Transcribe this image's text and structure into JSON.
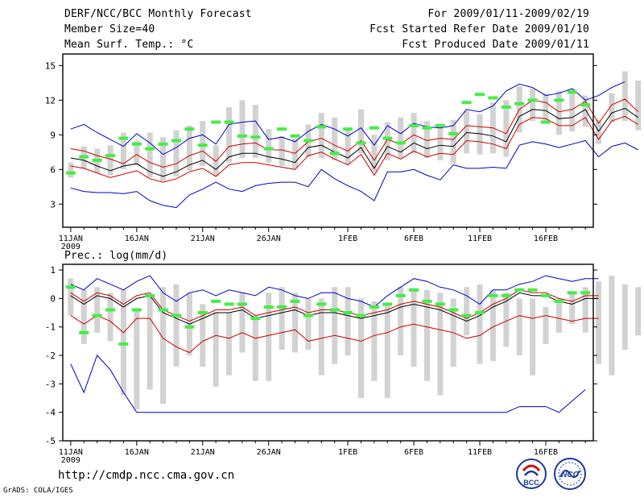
{
  "header": {
    "title": "DERF/NCC/BCC Monthly Forecast",
    "member_size": "Member Size=40",
    "variable": "Mean Surf. Temp.: °C",
    "forecast_range": "For 2009/01/11-2009/02/19",
    "fcst_started": "Fcst Started Refer Date 2009/01/10",
    "fcst_produced": "Fcst Produced Date 2009/01/11"
  },
  "footer": {
    "url": "http://cmdp.ncc.cma.gov.cn",
    "grads_credit": "GrADS: COLA/IGES",
    "logo_bcc": "BCC",
    "logo_ncc": "NCC"
  },
  "colors": {
    "ensemble_mean": "#000000",
    "spread_band": "#cc0000",
    "min_max": "#0000cc",
    "box": "#d2d2d2",
    "observed_marker": "#44ee44"
  },
  "chart_data": [
    {
      "type": "line",
      "id": "temp",
      "title": "Mean Surf. Temp.: °C",
      "x_tick_labels": [
        "11JAN",
        "16JAN",
        "21JAN",
        "26JAN",
        "1FEB",
        "6FEB",
        "11FEB",
        "16FEB"
      ],
      "x_tick_days": [
        1,
        6,
        11,
        16,
        22,
        27,
        32,
        37
      ],
      "x_sublabel": "2009",
      "xlim": [
        0.4,
        40.6
      ],
      "ylim": [
        1,
        16
      ],
      "yticks": [
        3,
        6,
        9,
        12,
        15
      ],
      "ytick_labels": [
        "3",
        "6",
        "9",
        "12",
        "15"
      ],
      "series": [
        {
          "name": "max",
          "color": "#0000cc",
          "values": [
            9.5,
            9.9,
            9.2,
            8.6,
            8.0,
            9.1,
            8.3,
            7.3,
            7.9,
            8.7,
            9.0,
            8.2,
            9.9,
            10.1,
            10.2,
            8.6,
            8.8,
            8.4,
            9.3,
            9.9,
            9.5,
            8.9,
            9.6,
            8.1,
            9.8,
            9.1,
            10.0,
            9.7,
            9.6,
            9.8,
            11.2,
            11.0,
            11.5,
            12.8,
            13.4,
            13.1,
            12.4,
            12.6,
            13.0,
            12.0,
            12.4,
            13.1,
            13.6
          ]
        },
        {
          "name": "upper",
          "color": "#cc0000",
          "values": [
            7.8,
            7.6,
            7.2,
            6.9,
            6.5,
            7.3,
            6.6,
            6.2,
            6.5,
            7.2,
            7.6,
            6.7,
            8.0,
            8.2,
            8.3,
            7.7,
            7.7,
            7.4,
            8.4,
            8.7,
            8.1,
            7.6,
            8.5,
            6.8,
            8.6,
            8.2,
            9.0,
            8.5,
            8.7,
            8.6,
            9.8,
            9.7,
            9.6,
            9.1,
            11.2,
            12.0,
            11.8,
            11.0,
            11.2,
            11.9,
            10.0,
            11.6,
            12.1,
            11.0
          ]
        },
        {
          "name": "mean",
          "color": "#000000",
          "values": [
            7.0,
            6.8,
            6.3,
            5.9,
            6.3,
            6.5,
            5.8,
            5.4,
            5.8,
            6.4,
            6.8,
            6.0,
            7.1,
            7.4,
            7.4,
            7.1,
            6.9,
            6.6,
            7.9,
            8.1,
            7.5,
            7.0,
            7.9,
            6.1,
            8.0,
            7.5,
            8.3,
            7.8,
            8.1,
            8.0,
            9.2,
            9.1,
            8.9,
            8.4,
            10.6,
            11.2,
            11.1,
            10.4,
            10.5,
            11.2,
            9.3,
            10.9,
            11.3,
            10.5
          ]
        },
        {
          "name": "lower",
          "color": "#cc0000",
          "values": [
            6.3,
            6.1,
            5.7,
            5.3,
            5.6,
            5.9,
            5.2,
            4.9,
            5.2,
            5.8,
            6.1,
            5.4,
            6.4,
            6.6,
            6.6,
            6.4,
            6.2,
            6.0,
            7.2,
            7.5,
            6.9,
            6.4,
            7.3,
            5.5,
            7.4,
            6.9,
            7.6,
            7.1,
            7.4,
            7.3,
            8.5,
            8.4,
            8.2,
            7.8,
            9.9,
            10.5,
            10.4,
            9.8,
            9.8,
            10.5,
            8.6,
            10.2,
            10.6,
            9.9
          ]
        },
        {
          "name": "min",
          "color": "#0000cc",
          "values": [
            4.4,
            4.1,
            4.0,
            4.0,
            3.9,
            4.1,
            3.3,
            2.9,
            2.7,
            3.8,
            4.3,
            4.9,
            4.3,
            4.1,
            4.6,
            4.8,
            4.9,
            4.9,
            4.5,
            6.0,
            5.2,
            4.6,
            4.1,
            3.3,
            5.8,
            5.8,
            6.0,
            5.5,
            5.1,
            6.4,
            6.1,
            6.1,
            6.2,
            6.1,
            8.1,
            8.4,
            8.2,
            7.9,
            8.2,
            8.5,
            7.1,
            8.0,
            8.3,
            7.7
          ]
        }
      ],
      "box_low": [
        5.3,
        6.1,
        5.7,
        5.5,
        6.0,
        6.4,
        5.3,
        5.0,
        5.4,
        5.9,
        6.3,
        5.4,
        6.6,
        7.0,
        7.0,
        6.6,
        6.3,
        6.1,
        7.1,
        7.0,
        6.8,
        6.4,
        7.4,
        5.8,
        6.8,
        7.0,
        7.4,
        7.0,
        6.8,
        6.5,
        7.4,
        7.3,
        7.4,
        7.1,
        9.2,
        10.2,
        10.1,
        9.0,
        9.3,
        9.7,
        8.2,
        10.1,
        10.2,
        9.4
      ],
      "box_high": [
        6.6,
        8.0,
        7.8,
        8.1,
        9.2,
        8.5,
        9.2,
        8.8,
        9.4,
        9.8,
        10.2,
        8.1,
        11.4,
        12.0,
        11.6,
        9.5,
        8.9,
        8.7,
        9.9,
        10.9,
        10.5,
        9.4,
        11.2,
        9.0,
        10.1,
        10.5,
        10.9,
        10.2,
        9.6,
        10.3,
        11.1,
        10.8,
        11.8,
        12.0,
        13.2,
        13.0,
        12.6,
        12.8,
        12.9,
        12.4,
        10.3,
        12.6,
        14.5,
        13.7
      ],
      "observed": [
        5.7,
        7.1,
        6.8,
        7.2,
        8.7,
        8.2,
        7.8,
        8.2,
        8.5,
        9.5,
        8.1,
        10.1,
        10.1,
        8.9,
        8.8,
        7.8,
        9.5,
        8.9,
        8.5,
        9.7,
        7.4,
        9.5,
        8.3,
        9.6,
        8.7,
        8.3,
        9.8,
        9.6,
        9.8,
        9.1,
        11.8,
        12.5,
        12.2,
        11.4,
        11.7,
        12.0,
        10.1,
        12.0,
        12.7,
        11.6
      ]
    },
    {
      "type": "line",
      "id": "prec",
      "title": "Prec.: log(mm/d)",
      "x_tick_labels": [
        "11JAN",
        "16JAN",
        "21JAN",
        "26JAN",
        "1FEB",
        "6FEB",
        "11FEB",
        "16FEB"
      ],
      "x_tick_days": [
        1,
        6,
        11,
        16,
        22,
        27,
        32,
        37
      ],
      "x_sublabel": "2009",
      "xlim": [
        0.4,
        40.6
      ],
      "ylim": [
        -5,
        1.2
      ],
      "yticks": [
        -5,
        -4,
        -3,
        -2,
        -1,
        0,
        1
      ],
      "ytick_labels": [
        "-5",
        "-4",
        "-3",
        "-2",
        "-1",
        "0",
        "1"
      ],
      "series": [
        {
          "name": "max",
          "color": "#0000cc",
          "values": [
            0.5,
            0.3,
            0.7,
            0.5,
            0.3,
            0.6,
            0.8,
            0.2,
            -0.1,
            0.2,
            0.3,
            0.1,
            0.3,
            0.2,
            0.1,
            0.4,
            0.3,
            0.1,
            0.0,
            0.2,
            0.2,
            0.0,
            -0.1,
            -0.3,
            0.1,
            0.4,
            0.7,
            0.6,
            0.4,
            0.3,
            0.1,
            -0.2,
            0.3,
            0.3,
            0.5,
            0.6,
            0.8,
            0.7,
            0.6,
            0.7,
            0.7
          ]
        },
        {
          "name": "upper",
          "color": "#cc0000",
          "values": [
            0.2,
            -0.1,
            0.2,
            0.1,
            -0.2,
            0.1,
            0.2,
            -0.4,
            -0.6,
            -0.8,
            -0.6,
            -0.4,
            -0.4,
            -0.3,
            -0.6,
            -0.5,
            -0.4,
            -0.3,
            -0.5,
            -0.4,
            -0.4,
            -0.5,
            -0.6,
            -0.5,
            -0.4,
            -0.2,
            -0.1,
            -0.2,
            -0.3,
            -0.5,
            -0.7,
            -0.5,
            -0.2,
            0.0,
            0.3,
            0.2,
            0.2,
            0.0,
            -0.1,
            0.1,
            0.1
          ]
        },
        {
          "name": "mean",
          "color": "#000000",
          "values": [
            0.1,
            -0.2,
            0.1,
            0.0,
            -0.3,
            0.0,
            0.1,
            -0.5,
            -0.7,
            -0.9,
            -0.7,
            -0.5,
            -0.5,
            -0.4,
            -0.7,
            -0.6,
            -0.5,
            -0.4,
            -0.6,
            -0.5,
            -0.5,
            -0.6,
            -0.7,
            -0.6,
            -0.5,
            -0.3,
            -0.2,
            -0.3,
            -0.4,
            -0.6,
            -0.8,
            -0.6,
            -0.3,
            -0.1,
            0.2,
            0.1,
            0.1,
            -0.1,
            -0.2,
            0.0,
            0.0
          ]
        },
        {
          "name": "lower",
          "color": "#cc0000",
          "values": [
            -0.6,
            -0.9,
            -0.6,
            -0.8,
            -1.2,
            -0.7,
            -0.7,
            -1.4,
            -1.7,
            -1.9,
            -1.5,
            -1.3,
            -1.4,
            -1.2,
            -1.4,
            -1.3,
            -1.2,
            -1.1,
            -1.5,
            -1.4,
            -1.3,
            -1.4,
            -1.5,
            -1.3,
            -1.2,
            -1.0,
            -0.9,
            -1.0,
            -1.1,
            -1.2,
            -1.4,
            -1.3,
            -1.0,
            -0.8,
            -0.6,
            -0.7,
            -0.6,
            -0.7,
            -0.8,
            -0.7,
            -0.7
          ]
        },
        {
          "name": "min",
          "color": "#0000cc",
          "values": [
            -2.3,
            -3.3,
            -2.0,
            -2.5,
            -3.3,
            -4.0,
            -4.0,
            -4.0,
            -4.0,
            -4.0,
            -4.0,
            -4.0,
            -4.0,
            -4.0,
            -4.0,
            -4.0,
            -4.0,
            -4.0,
            -4.0,
            -4.0,
            -4.0,
            -4.0,
            -4.0,
            -4.0,
            -4.0,
            -4.0,
            -4.0,
            -4.0,
            -4.0,
            -4.0,
            -4.0,
            -4.0,
            -4.0,
            -4.0,
            -3.8,
            -3.8,
            -3.8,
            -4.0,
            -3.6,
            -3.2
          ]
        }
      ],
      "box_low": [
        -0.6,
        -1.6,
        -1.2,
        -1.5,
        -3.4,
        -3.9,
        -3.2,
        -3.7,
        -2.4,
        -2.0,
        -2.4,
        -3.1,
        -2.7,
        -1.9,
        -2.9,
        -2.9,
        -1.8,
        -1.9,
        -1.8,
        -2.7,
        -2.3,
        -2.0,
        -3.5,
        -2.9,
        -3.5,
        -2.0,
        -2.4,
        -2.9,
        -3.4,
        -2.4,
        -1.3,
        -2.3,
        -2.2,
        -1.7,
        -2.0,
        -2.7,
        -1.6,
        -1.2,
        -0.9,
        -1.2,
        -2.3,
        -2.7,
        -1.8,
        -1.3,
        -1.7
      ],
      "box_high": [
        0.7,
        0.3,
        0.4,
        0.2,
        0.3,
        -0.4,
        0.1,
        0.4,
        0.5,
        0.2,
        -0.2,
        -0.5,
        -0.5,
        0.2,
        -0.6,
        0.2,
        0.4,
        0.2,
        0.0,
        0.0,
        0.4,
        0.4,
        0.0,
        -0.1,
        -0.2,
        0.4,
        0.3,
        0.3,
        0.2,
        0.0,
        0.4,
        0.5,
        0.3,
        0.2,
        0.0,
        0.0,
        -0.3,
        0.0,
        0.2,
        0.4,
        0.6,
        0.8,
        0.5,
        0.4,
        0.4
      ],
      "observed": [
        0.4,
        -1.2,
        -0.6,
        -0.4,
        -1.6,
        -0.4,
        0.1,
        -0.4,
        -0.6,
        -1.0,
        -0.5,
        -0.1,
        -0.2,
        -0.2,
        -0.7,
        -0.3,
        -0.3,
        -0.1,
        -0.6,
        -0.2,
        -0.4,
        -0.5,
        -0.6,
        -0.3,
        -0.2,
        0.1,
        0.3,
        -0.1,
        -0.2,
        -0.4,
        -0.6,
        -0.5,
        0.1,
        0.1,
        0.3,
        0.3,
        0.1,
        -0.1,
        0.2,
        0.2
      ]
    }
  ]
}
